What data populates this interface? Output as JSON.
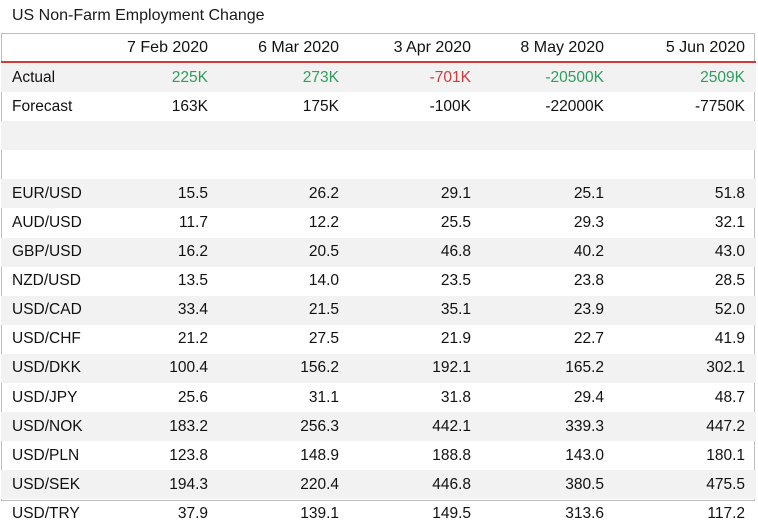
{
  "title": "US Non-Farm Employment Change",
  "colors": {
    "positive": "#2e9e5e",
    "negative": "#d23a3a",
    "header_rule": "#d23a3a",
    "stripe": "#f2f2f2"
  },
  "chart_data": {
    "type": "table",
    "title": "US Non-Farm Employment Change",
    "columns": [
      "7 Feb 2020",
      "6 Mar 2020",
      "3 Apr 2020",
      "8 May 2020",
      "5 Jun 2020"
    ],
    "actual": {
      "label": "Actual",
      "values": [
        "225K",
        "273K",
        "-701K",
        "-20500K",
        "2509K"
      ],
      "signs": [
        "pos",
        "pos",
        "neg",
        "pos",
        "pos"
      ]
    },
    "forecast": {
      "label": "Forecast",
      "values": [
        "163K",
        "175K",
        "-100K",
        "-22000K",
        "-7750K"
      ]
    },
    "rows": [
      {
        "label": "EUR/USD",
        "values": [
          "15.5",
          "26.2",
          "29.1",
          "25.1",
          "51.8"
        ]
      },
      {
        "label": "AUD/USD",
        "values": [
          "11.7",
          "12.2",
          "25.5",
          "29.3",
          "32.1"
        ]
      },
      {
        "label": "GBP/USD",
        "values": [
          "16.2",
          "20.5",
          "46.8",
          "40.2",
          "43.0"
        ]
      },
      {
        "label": "NZD/USD",
        "values": [
          "13.5",
          "14.0",
          "23.5",
          "23.8",
          "28.5"
        ]
      },
      {
        "label": "USD/CAD",
        "values": [
          "33.4",
          "21.5",
          "35.1",
          "23.9",
          "52.0"
        ]
      },
      {
        "label": "USD/CHF",
        "values": [
          "21.2",
          "27.5",
          "21.9",
          "22.7",
          "41.9"
        ]
      },
      {
        "label": "USD/DKK",
        "values": [
          "100.4",
          "156.2",
          "192.1",
          "165.2",
          "302.1"
        ]
      },
      {
        "label": "USD/JPY",
        "values": [
          "25.6",
          "31.1",
          "31.8",
          "29.4",
          "48.7"
        ]
      },
      {
        "label": "USD/NOK",
        "values": [
          "183.2",
          "256.3",
          "442.1",
          "339.3",
          "447.2"
        ]
      },
      {
        "label": "USD/PLN",
        "values": [
          "123.8",
          "148.9",
          "188.8",
          "143.0",
          "180.1"
        ]
      },
      {
        "label": "USD/SEK",
        "values": [
          "194.3",
          "220.4",
          "446.8",
          "380.5",
          "475.5"
        ]
      },
      {
        "label": "USD/TRY",
        "values": [
          "37.9",
          "139.1",
          "149.5",
          "313.6",
          "117.2"
        ]
      }
    ]
  }
}
